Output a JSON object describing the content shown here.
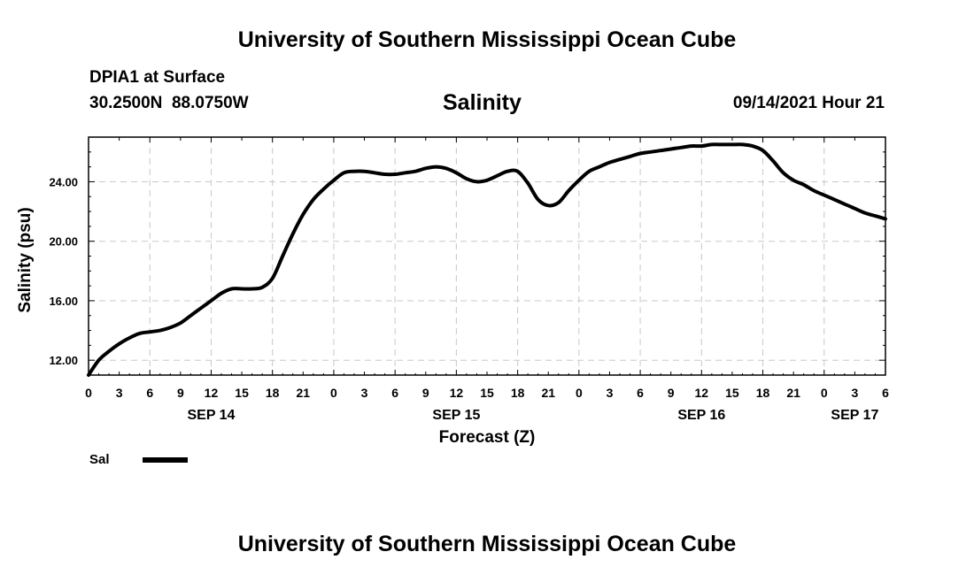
{
  "header": {
    "top_title": "University of Southern Mississippi Ocean Cube",
    "station": "DPIA1 at Surface",
    "coords": "30.2500N  88.0750W",
    "datetime": "09/14/2021 Hour 21",
    "bottom_title": "University of Southern Mississippi Ocean Cube"
  },
  "chart_data": {
    "type": "line",
    "title": "Salinity",
    "xlabel": "Forecast (Z)",
    "ylabel": "Salinity (psu)",
    "ylim": [
      11,
      27
    ],
    "xlim": [
      0,
      78
    ],
    "y_ticks": [
      12,
      16,
      20,
      24
    ],
    "y_tick_labels": [
      "12.00",
      "16.00",
      "20.00",
      "24.00"
    ],
    "x_tick_hours": [
      0,
      3,
      6,
      9,
      12,
      15,
      18,
      21,
      24,
      27,
      30,
      33,
      36,
      39,
      42,
      45,
      48,
      51,
      54,
      57,
      60,
      63,
      66,
      69,
      72,
      75,
      78
    ],
    "x_tick_labels": [
      "0",
      "3",
      "6",
      "9",
      "12",
      "15",
      "18",
      "21",
      "0",
      "3",
      "6",
      "9",
      "12",
      "15",
      "18",
      "21",
      "0",
      "3",
      "6",
      "9",
      "12",
      "15",
      "18",
      "21",
      "0",
      "3",
      "6"
    ],
    "date_labels": [
      {
        "label": "SEP 14",
        "hour": 12
      },
      {
        "label": "SEP 15",
        "hour": 36
      },
      {
        "label": "SEP 16",
        "hour": 60
      },
      {
        "label": "SEP 17",
        "hour": 75
      }
    ],
    "grid": true,
    "legend": "bottom-left",
    "series": [
      {
        "name": "Sal",
        "x": [
          0,
          1,
          2,
          3,
          4,
          5,
          6,
          7,
          8,
          9,
          10,
          11,
          12,
          13,
          14,
          15,
          16,
          17,
          18,
          19,
          20,
          21,
          22,
          23,
          24,
          25,
          26,
          27,
          28,
          29,
          30,
          31,
          32,
          33,
          34,
          35,
          36,
          37,
          38,
          39,
          40,
          41,
          42,
          43,
          44,
          45,
          46,
          47,
          48,
          49,
          50,
          51,
          52,
          53,
          54,
          55,
          56,
          57,
          58,
          59,
          60,
          61,
          62,
          63,
          64,
          65,
          66,
          67,
          68,
          69,
          70,
          71,
          72,
          73,
          74,
          75,
          76,
          77,
          78
        ],
        "values": [
          11.0,
          12.0,
          12.6,
          13.1,
          13.5,
          13.8,
          13.9,
          14.0,
          14.2,
          14.5,
          15.0,
          15.5,
          16.0,
          16.5,
          16.8,
          16.8,
          16.8,
          16.9,
          17.5,
          19.0,
          20.5,
          21.8,
          22.8,
          23.5,
          24.1,
          24.6,
          24.7,
          24.7,
          24.6,
          24.5,
          24.5,
          24.6,
          24.7,
          24.9,
          25.0,
          24.9,
          24.6,
          24.2,
          24.0,
          24.1,
          24.4,
          24.7,
          24.7,
          23.9,
          22.8,
          22.4,
          22.6,
          23.4,
          24.1,
          24.7,
          25.0,
          25.3,
          25.5,
          25.7,
          25.9,
          26.0,
          26.1,
          26.2,
          26.3,
          26.4,
          26.4,
          26.5,
          26.5,
          26.5,
          26.5,
          26.4,
          26.1,
          25.4,
          24.6,
          24.1,
          23.8,
          23.4,
          23.1,
          22.8,
          22.5,
          22.2,
          21.9,
          21.7,
          21.5
        ]
      }
    ]
  }
}
